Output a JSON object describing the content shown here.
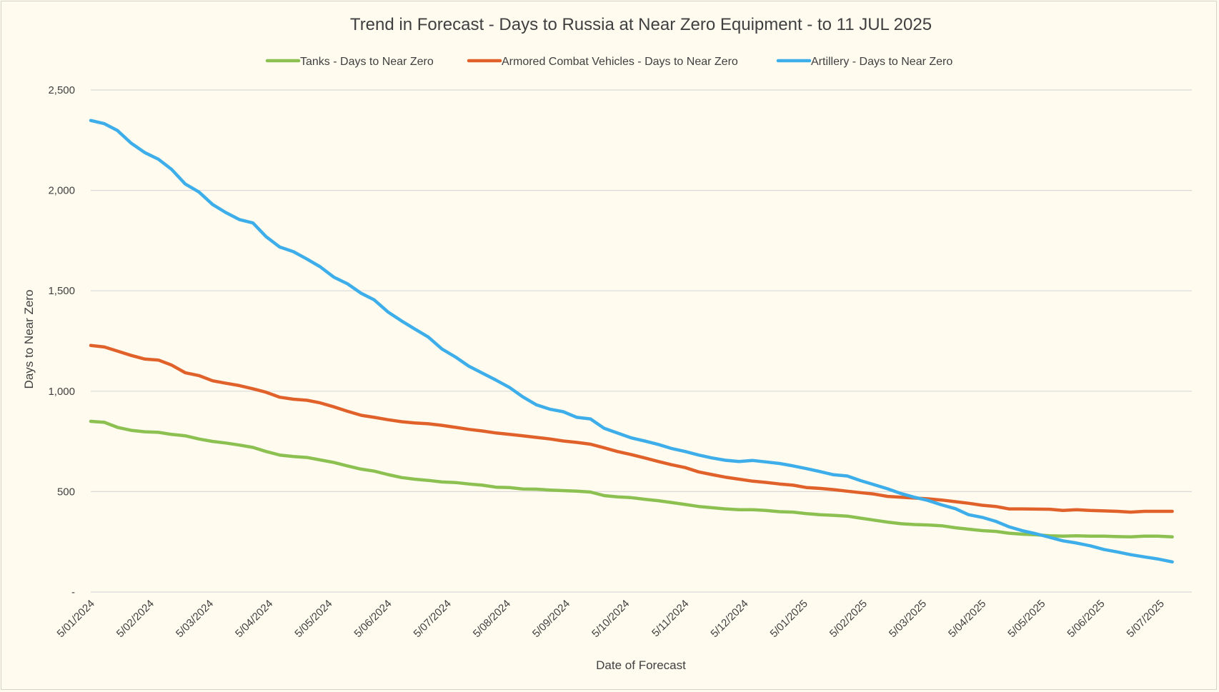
{
  "chart_data": {
    "type": "line",
    "title": "Trend in Forecast - Days to Russia at Near Zero Equipment - to 11 JUL 2025",
    "xlabel": "Date of Forecast",
    "ylabel": "Days to Near Zero",
    "ylim": [
      0,
      2500
    ],
    "y_ticks": [
      {
        "value": 0,
        "label": "-"
      },
      {
        "value": 500,
        "label": "500"
      },
      {
        "value": 1000,
        "label": "1,000"
      },
      {
        "value": 1500,
        "label": "1,500"
      },
      {
        "value": 2000,
        "label": "2,000"
      },
      {
        "value": 2500,
        "label": "2,500"
      }
    ],
    "grid": true,
    "legend_position": "top",
    "x_tick_labels": [
      "5/01/2024",
      "5/02/2024",
      "5/03/2024",
      "5/04/2024",
      "5/05/2024",
      "5/06/2024",
      "5/07/2024",
      "5/08/2024",
      "5/09/2024",
      "5/10/2024",
      "5/11/2024",
      "5/12/2024",
      "5/01/2025",
      "5/02/2025",
      "5/03/2025",
      "5/04/2025",
      "5/05/2025",
      "5/06/2025",
      "5/07/2025"
    ],
    "x_range": [
      0,
      18.2
    ],
    "series": [
      {
        "name": "Tanks - Days to Near Zero",
        "color": "#8cc152",
        "points": [
          [
            0.0,
            850
          ],
          [
            0.23,
            845
          ],
          [
            0.45,
            820
          ],
          [
            0.68,
            805
          ],
          [
            0.91,
            798
          ],
          [
            1.14,
            795
          ],
          [
            1.36,
            785
          ],
          [
            1.59,
            778
          ],
          [
            1.82,
            762
          ],
          [
            2.05,
            750
          ],
          [
            2.27,
            742
          ],
          [
            2.5,
            732
          ],
          [
            2.73,
            720
          ],
          [
            2.95,
            700
          ],
          [
            3.18,
            682
          ],
          [
            3.41,
            675
          ],
          [
            3.64,
            670
          ],
          [
            3.86,
            658
          ],
          [
            4.09,
            645
          ],
          [
            4.32,
            628
          ],
          [
            4.55,
            612
          ],
          [
            4.77,
            602
          ],
          [
            5.0,
            585
          ],
          [
            5.23,
            570
          ],
          [
            5.45,
            562
          ],
          [
            5.68,
            556
          ],
          [
            5.91,
            548
          ],
          [
            6.14,
            545
          ],
          [
            6.36,
            538
          ],
          [
            6.59,
            532
          ],
          [
            6.82,
            522
          ],
          [
            7.05,
            520
          ],
          [
            7.27,
            513
          ],
          [
            7.5,
            512
          ],
          [
            7.73,
            508
          ],
          [
            7.95,
            505
          ],
          [
            8.18,
            502
          ],
          [
            8.41,
            498
          ],
          [
            8.64,
            480
          ],
          [
            8.86,
            474
          ],
          [
            9.09,
            470
          ],
          [
            9.32,
            462
          ],
          [
            9.55,
            455
          ],
          [
            9.77,
            446
          ],
          [
            10.0,
            436
          ],
          [
            10.23,
            426
          ],
          [
            10.45,
            420
          ],
          [
            10.68,
            414
          ],
          [
            10.91,
            410
          ],
          [
            11.14,
            410
          ],
          [
            11.36,
            406
          ],
          [
            11.59,
            400
          ],
          [
            11.82,
            398
          ],
          [
            12.05,
            390
          ],
          [
            12.27,
            385
          ],
          [
            12.5,
            382
          ],
          [
            12.73,
            378
          ],
          [
            12.95,
            368
          ],
          [
            13.18,
            358
          ],
          [
            13.41,
            348
          ],
          [
            13.64,
            340
          ],
          [
            13.86,
            336
          ],
          [
            14.09,
            334
          ],
          [
            14.32,
            330
          ],
          [
            14.55,
            320
          ],
          [
            14.77,
            313
          ],
          [
            15.0,
            306
          ],
          [
            15.23,
            302
          ],
          [
            15.45,
            293
          ],
          [
            15.68,
            288
          ],
          [
            15.91,
            285
          ],
          [
            16.14,
            280
          ],
          [
            16.36,
            278
          ],
          [
            16.59,
            280
          ],
          [
            16.82,
            278
          ],
          [
            17.05,
            278
          ],
          [
            17.27,
            276
          ],
          [
            17.5,
            275
          ],
          [
            17.73,
            278
          ],
          [
            17.95,
            278
          ],
          [
            18.2,
            275
          ]
        ]
      },
      {
        "name": "Armored Combat Vehicles - Days to Near Zero",
        "color": "#e0622a",
        "points": [
          [
            0.0,
            1228
          ],
          [
            0.23,
            1220
          ],
          [
            0.45,
            1200
          ],
          [
            0.68,
            1178
          ],
          [
            0.91,
            1160
          ],
          [
            1.14,
            1155
          ],
          [
            1.36,
            1130
          ],
          [
            1.59,
            1092
          ],
          [
            1.82,
            1078
          ],
          [
            2.05,
            1052
          ],
          [
            2.27,
            1040
          ],
          [
            2.5,
            1028
          ],
          [
            2.73,
            1012
          ],
          [
            2.95,
            995
          ],
          [
            3.18,
            970
          ],
          [
            3.41,
            960
          ],
          [
            3.64,
            955
          ],
          [
            3.86,
            942
          ],
          [
            4.09,
            922
          ],
          [
            4.32,
            900
          ],
          [
            4.55,
            880
          ],
          [
            4.77,
            870
          ],
          [
            5.0,
            858
          ],
          [
            5.23,
            848
          ],
          [
            5.45,
            842
          ],
          [
            5.68,
            838
          ],
          [
            5.91,
            830
          ],
          [
            6.14,
            820
          ],
          [
            6.36,
            810
          ],
          [
            6.59,
            802
          ],
          [
            6.82,
            792
          ],
          [
            7.05,
            785
          ],
          [
            7.27,
            778
          ],
          [
            7.5,
            770
          ],
          [
            7.73,
            762
          ],
          [
            7.95,
            752
          ],
          [
            8.18,
            745
          ],
          [
            8.41,
            736
          ],
          [
            8.64,
            718
          ],
          [
            8.86,
            700
          ],
          [
            9.09,
            685
          ],
          [
            9.32,
            668
          ],
          [
            9.55,
            650
          ],
          [
            9.77,
            634
          ],
          [
            10.0,
            620
          ],
          [
            10.23,
            598
          ],
          [
            10.45,
            585
          ],
          [
            10.68,
            572
          ],
          [
            10.91,
            562
          ],
          [
            11.14,
            552
          ],
          [
            11.36,
            546
          ],
          [
            11.59,
            538
          ],
          [
            11.82,
            532
          ],
          [
            12.05,
            520
          ],
          [
            12.27,
            516
          ],
          [
            12.5,
            510
          ],
          [
            12.73,
            502
          ],
          [
            12.95,
            495
          ],
          [
            13.18,
            488
          ],
          [
            13.41,
            476
          ],
          [
            13.64,
            472
          ],
          [
            13.86,
            468
          ],
          [
            14.09,
            464
          ],
          [
            14.32,
            458
          ],
          [
            14.55,
            450
          ],
          [
            14.77,
            442
          ],
          [
            15.0,
            432
          ],
          [
            15.23,
            426
          ],
          [
            15.45,
            414
          ],
          [
            15.68,
            414
          ],
          [
            15.91,
            413
          ],
          [
            16.14,
            412
          ],
          [
            16.36,
            406
          ],
          [
            16.59,
            410
          ],
          [
            16.82,
            406
          ],
          [
            17.05,
            404
          ],
          [
            17.27,
            402
          ],
          [
            17.5,
            398
          ],
          [
            17.73,
            402
          ],
          [
            17.95,
            402
          ],
          [
            18.2,
            402
          ]
        ]
      },
      {
        "name": "Artillery - Days to Near Zero",
        "color": "#3daee9",
        "points": [
          [
            0.0,
            2348
          ],
          [
            0.23,
            2332
          ],
          [
            0.45,
            2298
          ],
          [
            0.68,
            2235
          ],
          [
            0.91,
            2188
          ],
          [
            1.14,
            2155
          ],
          [
            1.36,
            2105
          ],
          [
            1.59,
            2032
          ],
          [
            1.82,
            1992
          ],
          [
            2.05,
            1930
          ],
          [
            2.27,
            1890
          ],
          [
            2.5,
            1855
          ],
          [
            2.73,
            1838
          ],
          [
            2.95,
            1770
          ],
          [
            3.18,
            1718
          ],
          [
            3.41,
            1695
          ],
          [
            3.64,
            1658
          ],
          [
            3.86,
            1620
          ],
          [
            4.09,
            1568
          ],
          [
            4.32,
            1535
          ],
          [
            4.55,
            1488
          ],
          [
            4.77,
            1455
          ],
          [
            5.0,
            1395
          ],
          [
            5.23,
            1350
          ],
          [
            5.45,
            1310
          ],
          [
            5.68,
            1270
          ],
          [
            5.91,
            1210
          ],
          [
            6.14,
            1170
          ],
          [
            6.36,
            1125
          ],
          [
            6.59,
            1090
          ],
          [
            6.82,
            1055
          ],
          [
            7.05,
            1018
          ],
          [
            7.27,
            972
          ],
          [
            7.5,
            932
          ],
          [
            7.73,
            910
          ],
          [
            7.95,
            898
          ],
          [
            8.18,
            870
          ],
          [
            8.41,
            862
          ],
          [
            8.64,
            815
          ],
          [
            8.86,
            792
          ],
          [
            9.09,
            768
          ],
          [
            9.32,
            752
          ],
          [
            9.55,
            735
          ],
          [
            9.77,
            715
          ],
          [
            10.0,
            700
          ],
          [
            10.23,
            682
          ],
          [
            10.45,
            668
          ],
          [
            10.68,
            656
          ],
          [
            10.91,
            650
          ],
          [
            11.14,
            655
          ],
          [
            11.36,
            648
          ],
          [
            11.59,
            640
          ],
          [
            11.82,
            628
          ],
          [
            12.05,
            614
          ],
          [
            12.27,
            600
          ],
          [
            12.5,
            584
          ],
          [
            12.73,
            578
          ],
          [
            12.95,
            555
          ],
          [
            13.18,
            535
          ],
          [
            13.41,
            514
          ],
          [
            13.64,
            490
          ],
          [
            13.86,
            472
          ],
          [
            14.09,
            456
          ],
          [
            14.32,
            434
          ],
          [
            14.55,
            415
          ],
          [
            14.77,
            385
          ],
          [
            15.0,
            372
          ],
          [
            15.23,
            352
          ],
          [
            15.45,
            325
          ],
          [
            15.68,
            305
          ],
          [
            15.91,
            290
          ],
          [
            16.14,
            272
          ],
          [
            16.36,
            255
          ],
          [
            16.59,
            244
          ],
          [
            16.82,
            230
          ],
          [
            17.05,
            212
          ],
          [
            17.27,
            200
          ],
          [
            17.5,
            186
          ],
          [
            17.73,
            175
          ],
          [
            17.95,
            165
          ],
          [
            18.2,
            150
          ]
        ]
      }
    ]
  }
}
